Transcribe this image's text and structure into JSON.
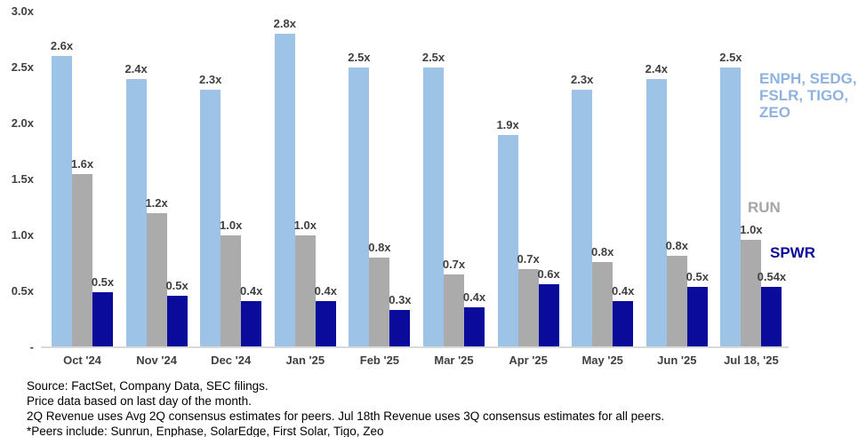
{
  "chart_data": {
    "type": "bar",
    "title": "",
    "categories": [
      "Oct '24",
      "Nov '24",
      "Dec '24",
      "Jan '25",
      "Feb '25",
      "Mar '25",
      "Apr '25",
      "May '25",
      "Jun '25",
      "Jul 18, '25"
    ],
    "series": [
      {
        "name": "ENPH, SEDG, FSLR, TIGO, ZEO",
        "color": "#9dc3e6",
        "values": [
          2.6,
          2.4,
          2.3,
          2.8,
          2.5,
          2.5,
          1.9,
          2.3,
          2.4,
          2.5
        ],
        "labels": [
          "2.6x",
          "2.4x",
          "2.3x",
          "2.8x",
          "2.5x",
          "2.5x",
          "1.9x",
          "2.3x",
          "2.4x",
          "2.5x"
        ]
      },
      {
        "name": "RUN",
        "color": "#ababab",
        "values": [
          1.55,
          1.2,
          1.0,
          1.0,
          0.8,
          0.65,
          0.7,
          0.76,
          0.82,
          0.96
        ],
        "labels": [
          "1.6x",
          "1.2x",
          "1.0x",
          "1.0x",
          "0.8x",
          "0.7x",
          "0.7x",
          "0.8x",
          "0.8x",
          "1.0x"
        ]
      },
      {
        "name": "SPWR",
        "color": "#0a0a9b",
        "values": [
          0.49,
          0.46,
          0.41,
          0.41,
          0.33,
          0.36,
          0.56,
          0.41,
          0.54,
          0.54
        ],
        "labels": [
          "0.5x",
          "0.5x",
          "0.4x",
          "0.4x",
          "0.3x",
          "0.4x",
          "0.6x",
          "0.4x",
          "0.5x",
          "0.54x"
        ]
      }
    ],
    "y_ticks": [
      {
        "label": "3.0x",
        "value": 3.0
      },
      {
        "label": "2.5x",
        "value": 2.5
      },
      {
        "label": "2.0x",
        "value": 2.0
      },
      {
        "label": "1.5x",
        "value": 1.5
      },
      {
        "label": "1.0x",
        "value": 1.0
      },
      {
        "label": "0.5x",
        "value": 0.5
      },
      {
        "label": "-",
        "value": 0.0
      }
    ],
    "ylim": [
      0,
      3.0
    ],
    "grid": false,
    "legend_position": "right",
    "data_labels": true
  },
  "legend": {
    "peers": "ENPH, SEDG,\nFSLR, TIGO,\nZEO",
    "run": "RUN",
    "spwr": "SPWR"
  },
  "footer": {
    "lines": [
      "Source:  FactSet, Company Data, SEC filings.",
      "Price data based on last day of the month.",
      "2Q Revenue uses Avg 2Q consensus estimates for peers. Jul 18th Revenue uses 3Q consensus estimates for all peers.",
      "*Peers include: Sunrun, Enphase, SolarEdge, First Solar, Tigo, Zeo"
    ]
  },
  "colors": {
    "peers_bar": "#9dc3e6",
    "run_bar": "#ababab",
    "spwr_bar": "#0a0a9b",
    "axis_line": "#d9d9d9",
    "tick_text": "#404040",
    "legend_peers_text": "#8fb2e0",
    "legend_run_text": "#a6a6a6",
    "legend_spwr_text": "#0a0a9b"
  }
}
